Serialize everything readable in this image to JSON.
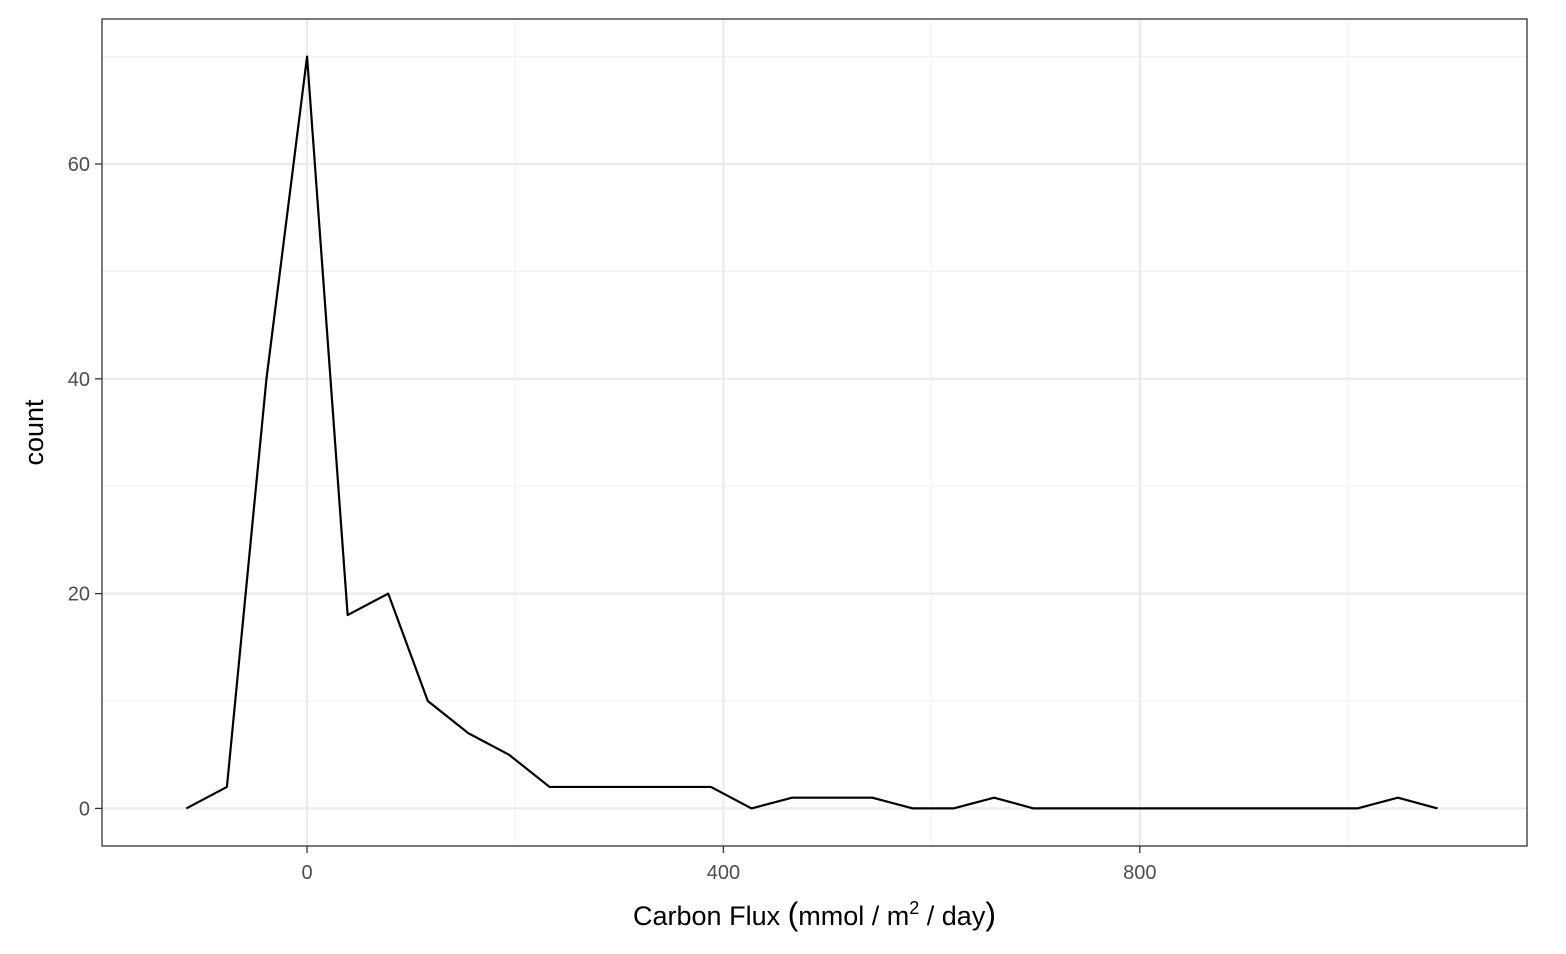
{
  "chart_data": {
    "type": "line",
    "title": "",
    "xlabel": {
      "text": "Carbon Flux",
      "unit_open": "(",
      "unit_base": "mmol / m",
      "unit_sup": "2",
      "unit_tail": " / day",
      "unit_close": ")"
    },
    "ylabel": "count",
    "xlim": [
      -197,
      1172
    ],
    "ylim": [
      -3.5,
      73.5
    ],
    "x_ticks": [
      0,
      400,
      800
    ],
    "x_tick_labels": [
      "0",
      "400",
      "800"
    ],
    "x_minor_ticks": [
      200,
      600,
      1000
    ],
    "y_ticks": [
      0,
      20,
      40,
      60
    ],
    "y_tick_labels": [
      "0",
      "20",
      "40",
      "60"
    ],
    "y_minor_ticks": [
      10,
      30,
      50,
      70
    ],
    "grid": true,
    "legend": "none",
    "colors": {
      "line": "#000000",
      "panel_border": "#333333",
      "grid_major": "#ebebeb",
      "grid_minor": "#f3f3f3",
      "tick_label": "#4d4d4d"
    },
    "series": [
      {
        "x": [
          -116,
          -77,
          -39,
          0,
          39,
          78,
          116,
          155,
          194,
          233,
          272,
          311,
          349,
          388,
          427,
          466,
          504,
          543,
          582,
          621,
          660,
          698,
          737,
          776,
          815,
          854,
          892,
          931,
          970,
          1009,
          1048,
          1086
        ],
        "values": [
          0,
          2,
          40,
          70,
          18,
          20,
          10,
          7,
          5,
          2,
          2,
          2,
          2,
          2,
          0,
          1,
          1,
          1,
          0,
          0,
          1,
          0,
          0,
          0,
          0,
          0,
          0,
          0,
          0,
          0,
          1,
          0
        ]
      }
    ]
  }
}
